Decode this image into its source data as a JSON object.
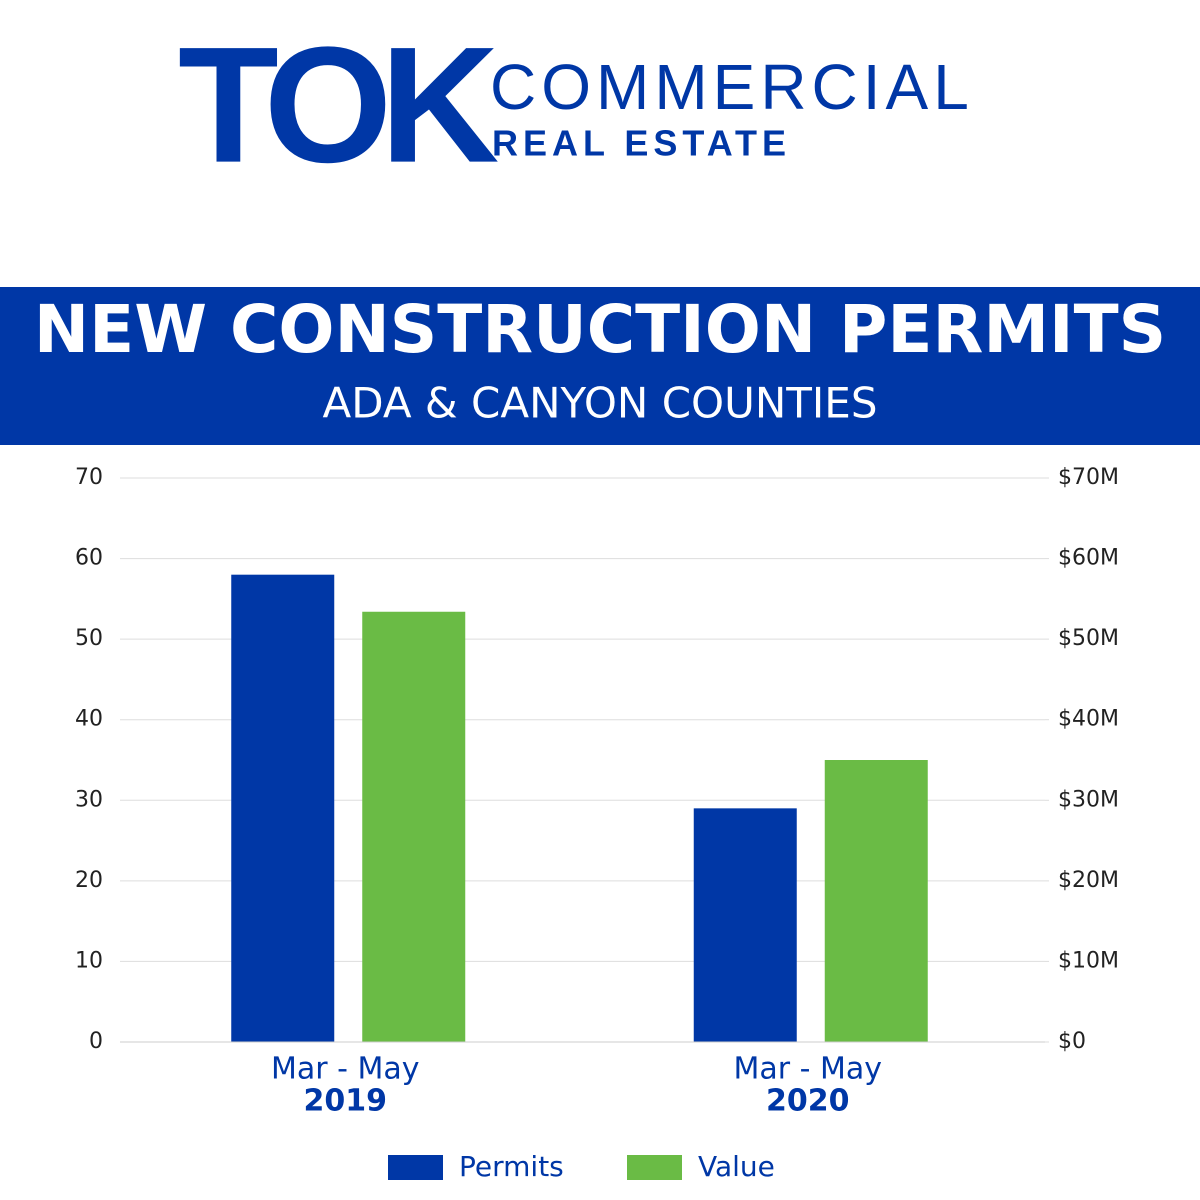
{
  "logo": {
    "mark": "TOK",
    "line1": "COMMERCIAL",
    "line2": "REAL ESTATE"
  },
  "chart_data": {
    "type": "bar",
    "title": "NEW CONSTRUCTION PERMITS",
    "subtitle": "ADA & CANYON COUNTIES",
    "categories": [
      {
        "label": "Mar - May",
        "sublabel": "2019"
      },
      {
        "label": "Mar - May",
        "sublabel": "2020"
      }
    ],
    "series": [
      {
        "name": "Permits",
        "color": "#0037a6",
        "values": [
          58,
          29
        ]
      },
      {
        "name": "Value",
        "color": "#6abb45",
        "axis": "y2",
        "values": [
          53400000,
          35000000
        ]
      }
    ],
    "ylim": [
      0,
      70
    ],
    "yticks": [
      0,
      10,
      20,
      30,
      40,
      50,
      60,
      70
    ],
    "y2lim": [
      0,
      70000000
    ],
    "y2ticks": [
      {
        "value": 0,
        "label": "$0"
      },
      {
        "value": 10000000,
        "label": "$10M"
      },
      {
        "value": 20000000,
        "label": "$20M"
      },
      {
        "value": 30000000,
        "label": "$30M"
      },
      {
        "value": 40000000,
        "label": "$40M"
      },
      {
        "value": 50000000,
        "label": "$50M"
      },
      {
        "value": 60000000,
        "label": "$60M"
      },
      {
        "value": 70000000,
        "label": "$70M"
      }
    ],
    "grid": true,
    "legend": "bottom"
  }
}
